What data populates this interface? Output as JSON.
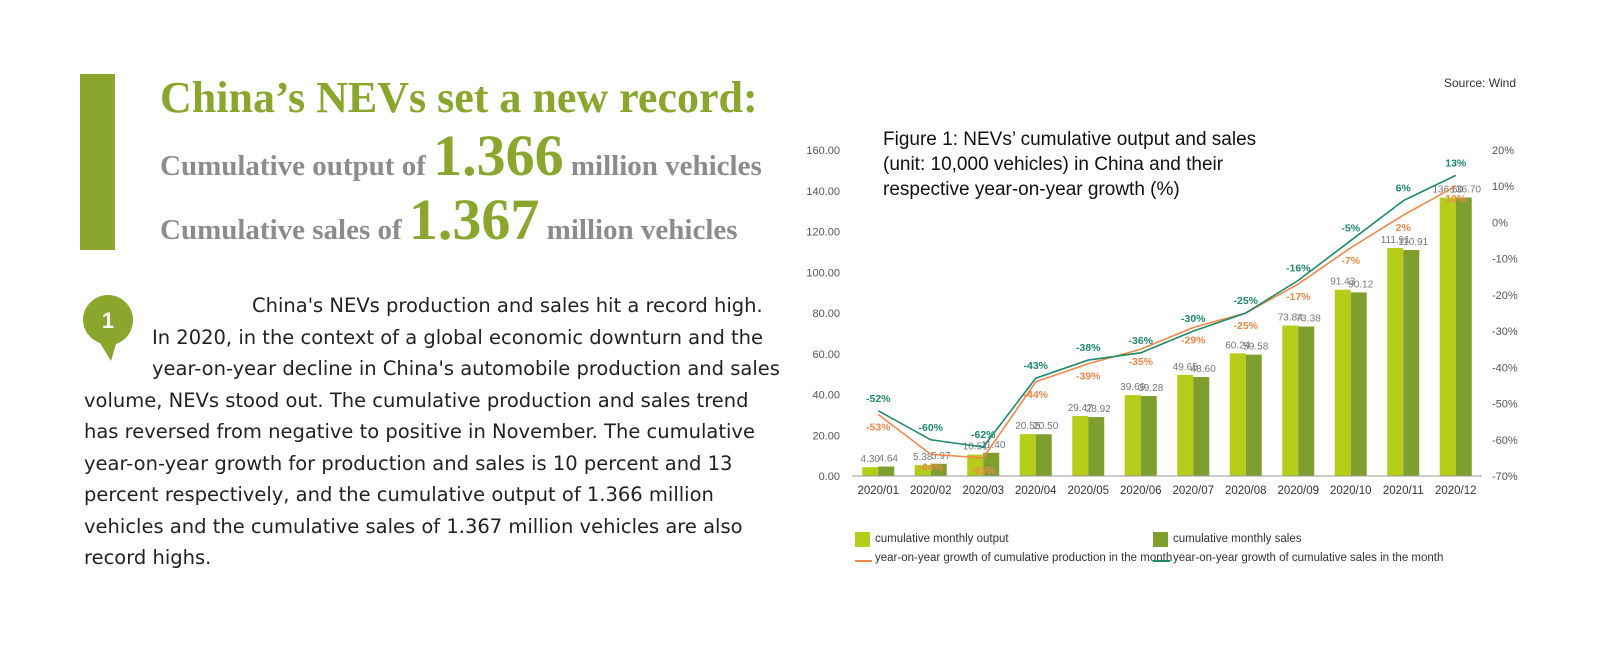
{
  "header": {
    "title": "China’s NEVs set a new record:",
    "output_prefix": "Cumulative output of",
    "output_value": "1.366",
    "output_suffix": "million vehicles",
    "sales_prefix": "Cumulative sales of",
    "sales_value": "1.367",
    "sales_suffix": "million vehicles"
  },
  "section_number": "1",
  "paragraph": "China's NEVs production and sales hit a record high. In 2020, in the context of a global economic downturn and the year-on-year decline in China's automobile production and sales volume, NEVs stood out. The cumulative production and sales trend has reversed from negative to positive in November. The cumulative year-on-year growth for production and sales is 10 percent and 13 percent respectively, and the cumulative output of 1.366 million vehicles and the cumulative sales of 1.367 million vehicles are also record highs.",
  "source": "Source: Wind",
  "colors": {
    "accent": "#8aa62c",
    "output_bar": "#b5cc18",
    "sales_bar": "#7e9f2e",
    "production_growth_line": "#f0884a",
    "sales_growth_line": "#1d8a6a"
  },
  "chart_data": {
    "type": "bar",
    "title": "Figure 1: NEVs’ cumulative output and sales (unit: 10,000 vehicles) in China and their respective year-on-year growth (%)",
    "categories": [
      "2020/01",
      "2020/02",
      "2020/03",
      "2020/04",
      "2020/05",
      "2020/06",
      "2020/07",
      "2020/08",
      "2020/09",
      "2020/10",
      "2020/11",
      "2020/12"
    ],
    "series": [
      {
        "name": "cumulative monthly output",
        "kind": "bar",
        "axis": "left",
        "values": [
          4.3,
          5.38,
          10.51,
          20.55,
          29.47,
          39.69,
          49.65,
          60.24,
          73.84,
          91.43,
          111.91,
          136.6
        ],
        "labels": [
          "4.30",
          "5.38",
          "10.51",
          "20.55",
          "29.47",
          "39.69",
          "49.65",
          "60.24",
          "73.84",
          "91.43",
          "111.91",
          "136.60"
        ]
      },
      {
        "name": "cumulative monthly sales",
        "kind": "bar",
        "axis": "left",
        "values": [
          4.64,
          5.97,
          11.4,
          20.5,
          28.92,
          39.28,
          48.6,
          59.58,
          73.38,
          90.12,
          110.91,
          136.7
        ],
        "labels": [
          "4.64",
          "5.97",
          "11.40",
          "20.50",
          "28.92",
          "39.28",
          "48.60",
          "59.58",
          "73.38",
          "90.12",
          "110.91",
          "136.70"
        ]
      },
      {
        "name": "year-on-year growth of cumulative production in the month",
        "kind": "line",
        "axis": "right",
        "values": [
          -53,
          -64,
          -65,
          -44,
          -39,
          -35,
          -29,
          -25,
          -17,
          -7,
          2,
          10
        ],
        "labels": [
          "-53%",
          "-64%",
          "-65%",
          "-44%",
          "-39%",
          "-35%",
          "-29%",
          "-25%",
          "-17%",
          "-7%",
          "2%",
          "10%"
        ]
      },
      {
        "name": "year-on-year growth of cumulative sales in the month",
        "kind": "line",
        "axis": "right",
        "values": [
          -52,
          -60,
          -62,
          -43,
          -38,
          -36,
          -30,
          -25,
          -16,
          -5,
          6,
          13
        ],
        "labels": [
          "-52%",
          "-60%",
          "-62%",
          "-43%",
          "-38%",
          "-36%",
          "-30%",
          "-25%",
          "-16%",
          "-5%",
          "6%",
          "13%"
        ]
      }
    ],
    "ylim": [
      0,
      160
    ],
    "yticks": [
      "0.00",
      "20.00",
      "40.00",
      "60.00",
      "80.00",
      "100.00",
      "120.00",
      "140.00",
      "160.00"
    ],
    "y2lim": [
      -70,
      20
    ],
    "y2ticks": [
      "20%",
      "10%",
      "0%",
      "-10%",
      "-20%",
      "-30%",
      "-40%",
      "-50%",
      "-60%",
      "-70%"
    ],
    "grid": false,
    "legend_position": "bottom"
  }
}
